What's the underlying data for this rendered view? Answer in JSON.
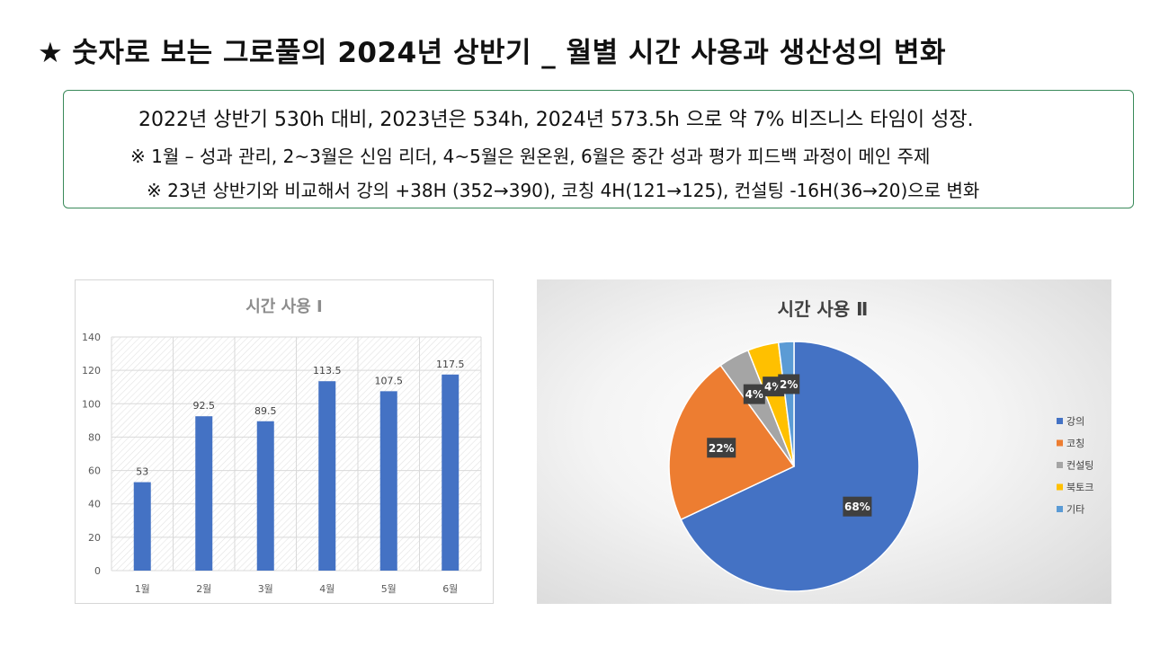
{
  "page": {
    "star": "★",
    "title": "숫자로 보는 그로풀의 2024년 상반기 _ 월별 시간 사용과 생산성의 변화"
  },
  "summary": {
    "line1": "2022년 상반기 530h 대비, 2023년은 534h, 2024년 573.5h 으로 약 7% 비즈니스 타임이 성장.",
    "line2": "※ 1월 – 성과 관리, 2~3월은 신임 리더, 4~5월은 원온원, 6월은 중간 성과 평가 피드백 과정이 메인 주제",
    "line3": "※ 23년 상반기와 비교해서 강의 +38H (352→390), 코칭 4H(121→125), 컨설팅 -16H(36→20)으로 변화"
  },
  "chart_data": [
    {
      "type": "bar",
      "title": "시간 사용 Ⅰ",
      "categories": [
        "1월",
        "2월",
        "3월",
        "4월",
        "5월",
        "6월"
      ],
      "values": [
        53,
        92.5,
        89.5,
        113.5,
        107.5,
        117.5
      ],
      "data_labels": [
        "53",
        "92.5",
        "89.5",
        "113.5",
        "107.5",
        "117.5"
      ],
      "ylim": [
        0,
        140
      ],
      "y_ticks": [
        0,
        20,
        40,
        60,
        80,
        100,
        120,
        140
      ],
      "xlabel": "",
      "ylabel": "",
      "grid": true,
      "colors": {
        "bar": "#4472c4"
      }
    },
    {
      "type": "pie",
      "title": "시간 사용 Ⅱ",
      "slices": [
        {
          "label": "강의",
          "value": 68,
          "display": "68%",
          "color": "#4472c4"
        },
        {
          "label": "코칭",
          "value": 22,
          "display": "22%",
          "color": "#ed7d31"
        },
        {
          "label": "컨설팅",
          "value": 4,
          "display": "4%",
          "color": "#a5a5a5"
        },
        {
          "label": "북토크",
          "value": 4,
          "display": "4%",
          "color": "#ffc000"
        },
        {
          "label": "기타",
          "value": 2,
          "display": "2%",
          "color": "#5b9bd5"
        }
      ],
      "legend_position": "right"
    }
  ]
}
